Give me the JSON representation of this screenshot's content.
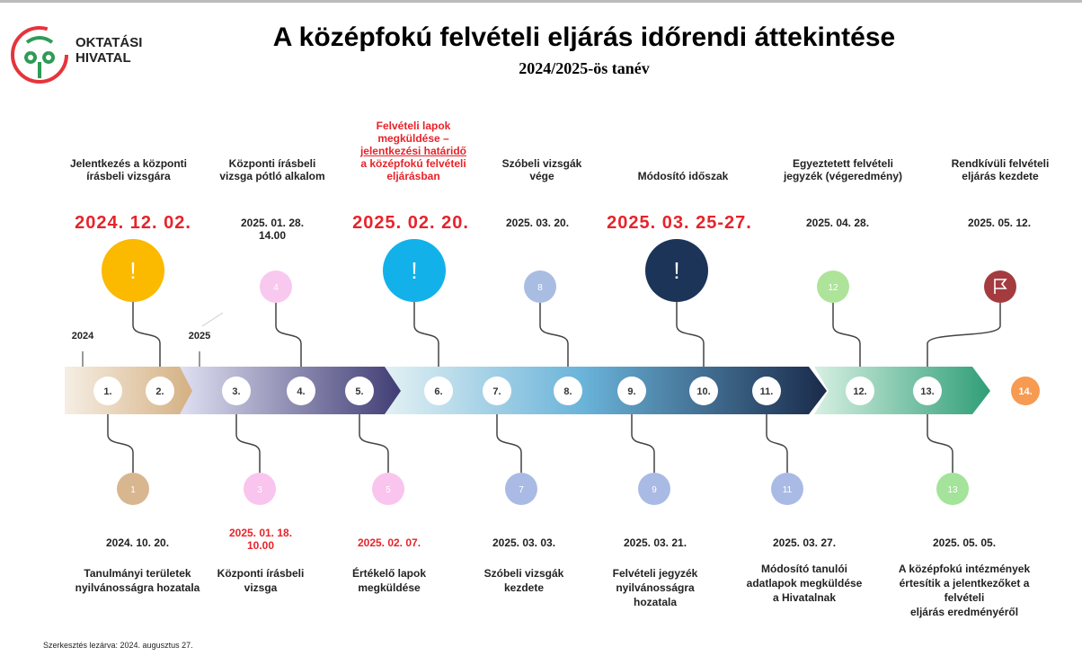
{
  "logo": {
    "line1": "OKTATÁSI",
    "line2": "HIVATAL"
  },
  "title": "A középfokú felvételi eljárás időrendi áttekintése",
  "subtitle": "2024/2025-ös tanév",
  "years": [
    "2024",
    "2025"
  ],
  "steps": [
    "1.",
    "2.",
    "3.",
    "4.",
    "5.",
    "6.",
    "7.",
    "8.",
    "9.",
    "10.",
    "11.",
    "12.",
    "13.",
    "14."
  ],
  "top_events": [
    {
      "title": [
        "Jelentkezés a központi",
        "írásbeli vizsgára"
      ],
      "date": [
        "2024. 12. 02."
      ],
      "date_color": "#e8232a",
      "marker": "!",
      "marker_color": "#fbb900"
    },
    {
      "title": [
        "Központi írásbeli",
        "vizsga pótló alkalom"
      ],
      "date": [
        "2025. 01. 28.",
        "14.00"
      ],
      "marker": "4",
      "marker_color": "#f9c8ef"
    },
    {
      "title": [
        "Felvételi lapok",
        "megküldése –",
        "jelentkezési határidő",
        "a középfokú felvételi",
        "eljárásban"
      ],
      "title_color": "#e8232a",
      "date": [
        "2025. 02. 20."
      ],
      "date_color": "#e8232a",
      "marker": "!",
      "marker_color": "#12b1ea"
    },
    {
      "title": [
        "Szóbeli vizsgák",
        "vége"
      ],
      "date": [
        "2025. 03. 20."
      ],
      "marker": "8",
      "marker_color": "#a9bde2"
    },
    {
      "title": [
        "Módosító időszak"
      ],
      "date": [
        "2025. 03. 25-27."
      ],
      "date_color": "#e8232a",
      "marker": "!",
      "marker_color": "#1c3458"
    },
    {
      "title": [
        "Egyeztetett felvételi",
        "jegyzék (végeredmény)"
      ],
      "date": [
        "2025. 04. 28."
      ],
      "marker": "12",
      "marker_color": "#aee39a"
    },
    {
      "title": [
        "Rendkívüli felvételi",
        "eljárás kezdete"
      ],
      "date": [
        "2025. 05. 12."
      ],
      "marker_color": "#a43b3f"
    }
  ],
  "bottom_events": [
    {
      "marker": "1",
      "marker_color": "#d8b690",
      "date": [
        "2024. 10. 20."
      ],
      "title": [
        "Tanulmányi területek",
        "nyilvánosságra hozatala"
      ]
    },
    {
      "marker": "3",
      "marker_color": "#f9c4ee",
      "date": [
        "2025. 01. 18.",
        "10.00"
      ],
      "date_color": "#e8232a",
      "title": [
        "Központi írásbeli",
        "vizsga"
      ]
    },
    {
      "marker": "5",
      "marker_color": "#f9c4ee",
      "date": [
        "2025. 02. 07."
      ],
      "date_color": "#e8232a",
      "title": [
        "Értékelő lapok",
        "megküldése"
      ]
    },
    {
      "marker": "7",
      "marker_color": "#a9bbe4",
      "date": [
        "2025. 03. 03."
      ],
      "title": [
        "Szóbeli vizsgák",
        "kezdete"
      ]
    },
    {
      "marker": "9",
      "marker_color": "#a9bbe4",
      "date": [
        "2025. 03. 21."
      ],
      "title": [
        "Felvételi jegyzék",
        "nyilvánosságra",
        "hozatala"
      ]
    },
    {
      "marker": "11",
      "marker_color": "#a9bbe4",
      "date": [
        "2025. 03. 27."
      ],
      "title": [
        "Módosító tanulói",
        "adatlapok megküldése",
        "a Hivatalnak"
      ]
    },
    {
      "marker": "13",
      "marker_color": "#a3e39a",
      "date": [
        "2025. 05. 05."
      ],
      "title": [
        "A középfokú intézmények",
        "értesítik a jelentkezőket a",
        "felvételi",
        "eljárás eredményéről"
      ]
    }
  ],
  "footer": "Szerkesztés lezárva: 2024. augusztus 27."
}
